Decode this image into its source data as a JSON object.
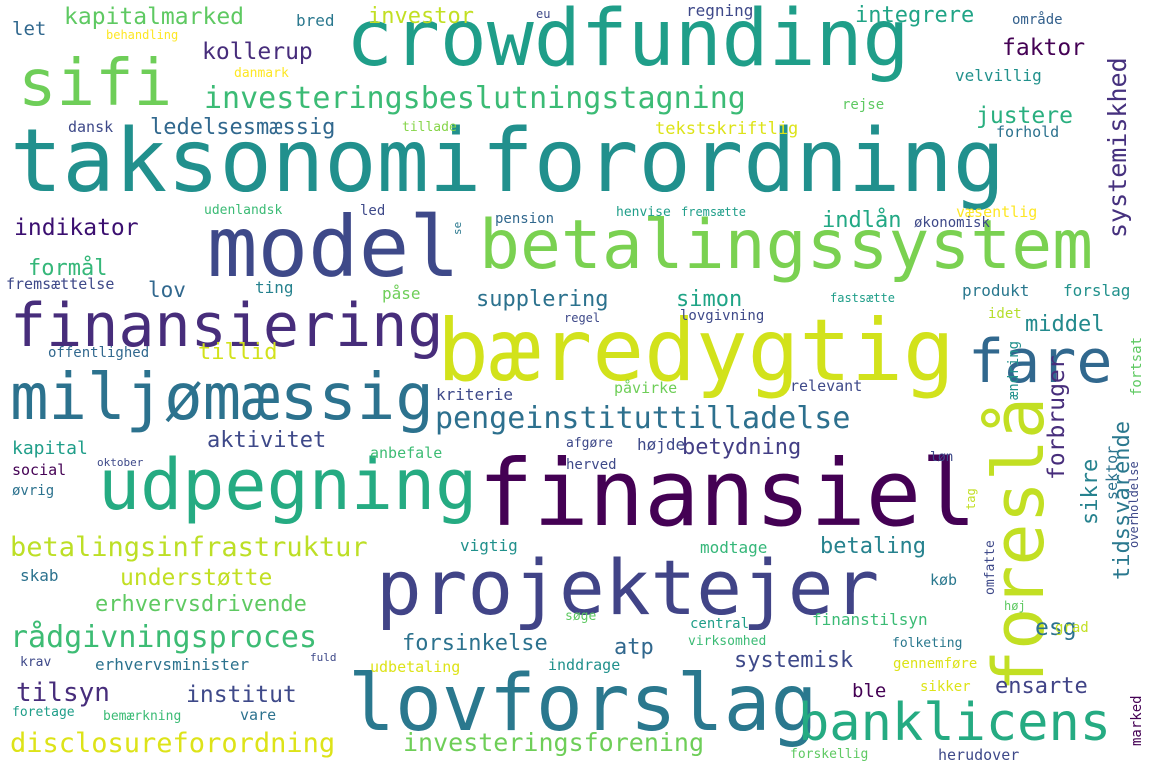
{
  "palette": {
    "dark_purple": "#440154",
    "indigo": "#482878",
    "blue": "#3e4989",
    "steel_blue": "#31688e",
    "teal_blue": "#26828e",
    "teal": "#1f9e89",
    "sea_green": "#35b779",
    "green": "#6ece58",
    "lime": "#b5de2b",
    "yellow": "#fde725"
  },
  "words": [
    {
      "text": "taksonomiforordning"
    },
    {
      "text": "crowdfunding"
    },
    {
      "text": "sifi"
    },
    {
      "text": "model"
    },
    {
      "text": "betalingssystem"
    },
    {
      "text": "bæredygtig"
    },
    {
      "text": "finansiering"
    },
    {
      "text": "fare"
    },
    {
      "text": "miljømæssig"
    },
    {
      "text": "udpegning"
    },
    {
      "text": "finansiel"
    },
    {
      "text": "foreslå"
    },
    {
      "text": "projektejer"
    },
    {
      "text": "lovforslag"
    },
    {
      "text": "banklicens"
    },
    {
      "text": "investeringsbeslutningstagning"
    },
    {
      "text": "pengeinstituttilladelse"
    },
    {
      "text": "betalingsinfrastruktur"
    },
    {
      "text": "disclosureforordning"
    },
    {
      "text": "rådgivningsproces"
    },
    {
      "text": "investeringsforening"
    },
    {
      "text": "kapitalmarked"
    },
    {
      "text": "investor"
    },
    {
      "text": "integrere"
    },
    {
      "text": "systemiskhed"
    },
    {
      "text": "kollerup"
    },
    {
      "text": "faktor"
    },
    {
      "text": "ledelsesmæssig"
    },
    {
      "text": "justere"
    },
    {
      "text": "indikator"
    },
    {
      "text": "indlån"
    },
    {
      "text": "formål"
    },
    {
      "text": "supplering"
    },
    {
      "text": "simon"
    },
    {
      "text": "middel"
    },
    {
      "text": "tillid"
    },
    {
      "text": "aktivitet"
    },
    {
      "text": "betydning"
    },
    {
      "text": "forbruger"
    },
    {
      "text": "tidssvarende"
    },
    {
      "text": "sikre"
    },
    {
      "text": "betaling"
    },
    {
      "text": "understøtte"
    },
    {
      "text": "erhvervsdrivende"
    },
    {
      "text": "forsinkelse"
    },
    {
      "text": "atp"
    },
    {
      "text": "esg"
    },
    {
      "text": "systemisk"
    },
    {
      "text": "tilsyn"
    },
    {
      "text": "institut"
    },
    {
      "text": "ble"
    },
    {
      "text": "ensarte"
    },
    {
      "text": "let"
    },
    {
      "text": "bred"
    },
    {
      "text": "regning"
    },
    {
      "text": "område"
    },
    {
      "text": "eu"
    },
    {
      "text": "behandling"
    },
    {
      "text": "danmark"
    },
    {
      "text": "velvillig"
    },
    {
      "text": "rejse"
    },
    {
      "text": "dansk"
    },
    {
      "text": "tillade"
    },
    {
      "text": "tekstskriftlig"
    },
    {
      "text": "forhold"
    },
    {
      "text": "udenlandsk"
    },
    {
      "text": "led"
    },
    {
      "text": "se"
    },
    {
      "text": "pension"
    },
    {
      "text": "henvise"
    },
    {
      "text": "fremsætte"
    },
    {
      "text": "væsentlig"
    },
    {
      "text": "økonomisk"
    },
    {
      "text": "lov"
    },
    {
      "text": "ting"
    },
    {
      "text": "fremsættelse"
    },
    {
      "text": "påse"
    },
    {
      "text": "produkt"
    },
    {
      "text": "forslag"
    },
    {
      "text": "fastsætte"
    },
    {
      "text": "regel"
    },
    {
      "text": "lovgivning"
    },
    {
      "text": "idet"
    },
    {
      "text": "offentlighed"
    },
    {
      "text": "kriterie"
    },
    {
      "text": "påvirke"
    },
    {
      "text": "relevant"
    },
    {
      "text": "ændring"
    },
    {
      "text": "fortsat"
    },
    {
      "text": "tag"
    },
    {
      "text": "sektor"
    },
    {
      "text": "kapital"
    },
    {
      "text": "højde"
    },
    {
      "text": "afgøre"
    },
    {
      "text": "social"
    },
    {
      "text": "anbefale"
    },
    {
      "text": "oktober"
    },
    {
      "text": "herved"
    },
    {
      "text": "løn"
    },
    {
      "text": "øvrig"
    },
    {
      "text": "overholdelse"
    },
    {
      "text": "vigtig"
    },
    {
      "text": "modtage"
    },
    {
      "text": "skab"
    },
    {
      "text": "køb"
    },
    {
      "text": "omfatte"
    },
    {
      "text": "søge"
    },
    {
      "text": "central"
    },
    {
      "text": "høj"
    },
    {
      "text": "finanstilsyn"
    },
    {
      "text": "grad"
    },
    {
      "text": "krav"
    },
    {
      "text": "fuld"
    },
    {
      "text": "erhvervsminister"
    },
    {
      "text": "virksomhed"
    },
    {
      "text": "folketing"
    },
    {
      "text": "udbetaling"
    },
    {
      "text": "inddrage"
    },
    {
      "text": "gennemføre"
    },
    {
      "text": "foretage"
    },
    {
      "text": "bemærkning"
    },
    {
      "text": "vare"
    },
    {
      "text": "sikker"
    },
    {
      "text": "marked"
    },
    {
      "text": "forskellig"
    },
    {
      "text": "herudover"
    }
  ]
}
